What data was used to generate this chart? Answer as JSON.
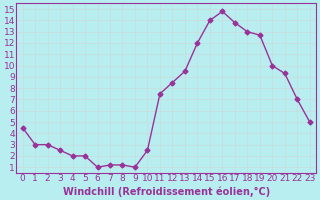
{
  "x": [
    0,
    1,
    2,
    3,
    4,
    5,
    6,
    7,
    8,
    9,
    10,
    11,
    12,
    13,
    14,
    15,
    16,
    17,
    18,
    19,
    20,
    21,
    22,
    23
  ],
  "y": [
    4.5,
    3.0,
    3.0,
    2.5,
    2.0,
    2.0,
    1.0,
    1.2,
    1.2,
    1.0,
    2.5,
    7.5,
    8.5,
    9.5,
    12.0,
    14.0,
    14.8,
    13.8,
    13.0,
    12.7,
    10.0,
    9.3,
    7.0,
    5.0
  ],
  "line_color": "#993399",
  "marker": "D",
  "marker_size": 2.5,
  "bg_color": "#b8eef0",
  "grid_color": "#c8dede",
  "xlabel": "Windchill (Refroidissement éolien,°C)",
  "ylabel_ticks": [
    1,
    2,
    3,
    4,
    5,
    6,
    7,
    8,
    9,
    10,
    11,
    12,
    13,
    14,
    15
  ],
  "xlim": [
    -0.5,
    23.5
  ],
  "ylim": [
    0.5,
    15.5
  ],
  "xticks": [
    0,
    1,
    2,
    3,
    4,
    5,
    6,
    7,
    8,
    9,
    10,
    11,
    12,
    13,
    14,
    15,
    16,
    17,
    18,
    19,
    20,
    21,
    22,
    23
  ],
  "xlabel_fontsize": 7,
  "tick_fontsize": 6.5
}
